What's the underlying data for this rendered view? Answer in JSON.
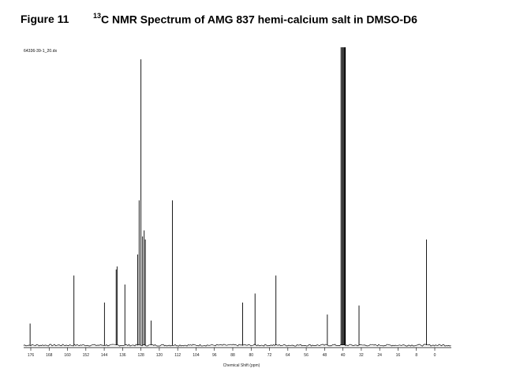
{
  "figure": {
    "label": "Figure 11",
    "title_sup": "13",
    "title_rest": "C NMR Spectrum of AMG 837 hemi-calcium salt in DMSO-D6",
    "file_id": "64336-39-1_20.dx"
  },
  "chart_data": {
    "type": "line",
    "title": "13C NMR Spectrum of AMG 837 hemi-calcium salt in DMSO-D6",
    "xlabel": "Chemical Shift (ppm)",
    "ylabel": "",
    "xlim": [
      180,
      -5
    ],
    "x_reversed": true,
    "ylim": [
      0,
      1
    ],
    "grid": false,
    "ticks": [
      176,
      168,
      160,
      152,
      144,
      136,
      128,
      120,
      112,
      104,
      96,
      88,
      80,
      72,
      64,
      56,
      48,
      40,
      32,
      24,
      16,
      8,
      0
    ],
    "series": [
      {
        "peaks": [
          {
            "x": 176.3,
            "y": 0.08
          },
          {
            "x": 157.2,
            "y": 0.24
          },
          {
            "x": 143.9,
            "y": 0.15
          },
          {
            "x": 138.8,
            "y": 0.26
          },
          {
            "x": 138.4,
            "y": 0.27
          },
          {
            "x": 135.0,
            "y": 0.21
          },
          {
            "x": 129.4,
            "y": 0.31
          },
          {
            "x": 128.8,
            "y": 0.49
          },
          {
            "x": 128.0,
            "y": 0.96
          },
          {
            "x": 127.3,
            "y": 0.37
          },
          {
            "x": 126.6,
            "y": 0.39
          },
          {
            "x": 126.1,
            "y": 0.36
          },
          {
            "x": 123.6,
            "y": 0.09
          },
          {
            "x": 114.3,
            "y": 0.49
          },
          {
            "x": 83.7,
            "y": 0.15
          },
          {
            "x": 78.3,
            "y": 0.18
          },
          {
            "x": 69.2,
            "y": 0.24
          },
          {
            "x": 46.8,
            "y": 0.11
          },
          {
            "x": 40.8,
            "y": 1.0
          },
          {
            "x": 40.2,
            "y": 1.0
          },
          {
            "x": 39.9,
            "y": 1.0
          },
          {
            "x": 39.4,
            "y": 1.0
          },
          {
            "x": 39.0,
            "y": 1.0
          },
          {
            "x": 33.0,
            "y": 0.14
          },
          {
            "x": 3.6,
            "y": 0.36
          }
        ]
      }
    ]
  }
}
